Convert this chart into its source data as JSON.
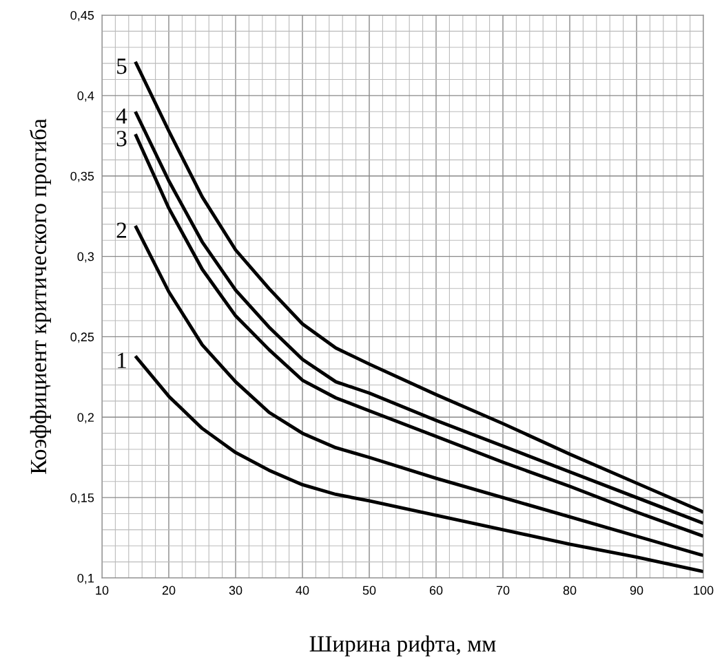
{
  "chart_data": {
    "type": "line",
    "xlabel": "Ширина рифта, мм",
    "ylabel": "Коэффициент критического прогиба",
    "x": [
      15,
      20,
      25,
      30,
      35,
      40,
      45,
      50,
      60,
      70,
      80,
      90,
      100
    ],
    "series": [
      {
        "name": "1",
        "color": "#000000",
        "values": [
          0.238,
          0.213,
          0.193,
          0.178,
          0.167,
          0.158,
          0.152,
          0.148,
          0.139,
          0.13,
          0.121,
          0.113,
          0.104
        ]
      },
      {
        "name": "2",
        "color": "#000000",
        "values": [
          0.319,
          0.278,
          0.245,
          0.222,
          0.203,
          0.19,
          0.181,
          0.175,
          0.162,
          0.15,
          0.138,
          0.126,
          0.114
        ]
      },
      {
        "name": "3",
        "color": "#000000",
        "values": [
          0.376,
          0.33,
          0.292,
          0.263,
          0.242,
          0.223,
          0.212,
          0.204,
          0.188,
          0.172,
          0.157,
          0.141,
          0.126
        ]
      },
      {
        "name": "4",
        "color": "#000000",
        "values": [
          0.39,
          0.347,
          0.309,
          0.279,
          0.256,
          0.236,
          0.222,
          0.215,
          0.198,
          0.182,
          0.166,
          0.15,
          0.134
        ]
      },
      {
        "name": "5",
        "color": "#000000",
        "values": [
          0.421,
          0.378,
          0.337,
          0.304,
          0.28,
          0.258,
          0.243,
          0.233,
          0.214,
          0.196,
          0.177,
          0.159,
          0.141
        ]
      }
    ],
    "xlim": [
      10,
      100
    ],
    "xticks": [
      10,
      20,
      30,
      40,
      50,
      60,
      70,
      80,
      90,
      100
    ],
    "ylim": [
      0.1,
      0.45
    ],
    "yticks": [
      {
        "value": 0.1,
        "label": "0,1"
      },
      {
        "value": 0.15,
        "label": "0,15"
      },
      {
        "value": 0.2,
        "label": "0,2"
      },
      {
        "value": 0.25,
        "label": "0,25"
      },
      {
        "value": 0.3,
        "label": "0,3"
      },
      {
        "value": 0.35,
        "label": "0,35"
      },
      {
        "value": 0.4,
        "label": "0,4"
      },
      {
        "value": 0.45,
        "label": "0,45"
      }
    ],
    "grid": true,
    "marker": "none",
    "line_style": "solid"
  }
}
